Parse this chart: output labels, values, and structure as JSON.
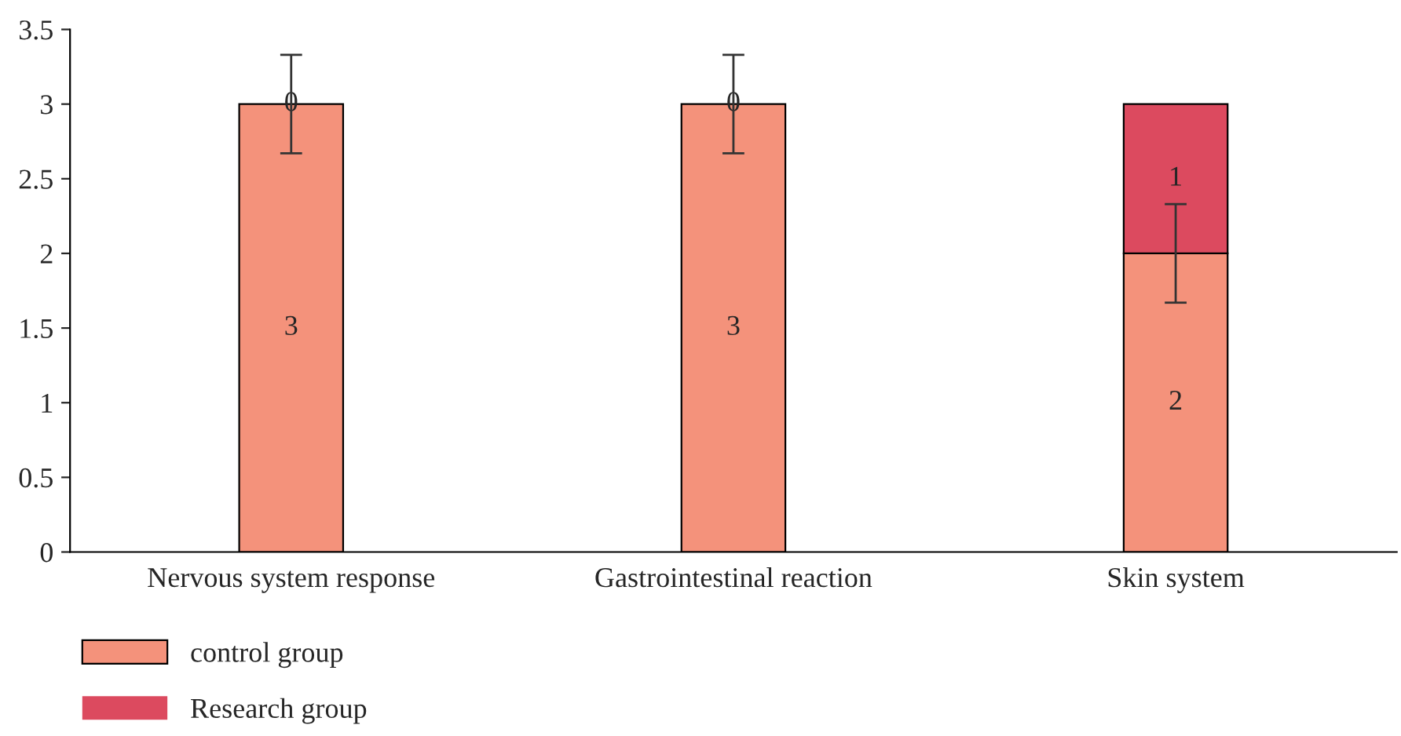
{
  "chart_data": {
    "type": "bar",
    "stacked": true,
    "categories": [
      "Nervous system response",
      "Gastrointestinal reaction",
      "Skin system"
    ],
    "series": [
      {
        "name": "control group",
        "color": "#f4927b",
        "values": [
          3,
          3,
          2
        ],
        "errors": [
          0.33,
          0.33,
          0.33
        ]
      },
      {
        "name": "Research group",
        "color": "#dc4a5f",
        "values": [
          0,
          0,
          1
        ]
      }
    ],
    "ylim": [
      0,
      3.5
    ],
    "yticks": [
      0,
      0.5,
      1,
      1.5,
      2,
      2.5,
      3,
      3.5
    ],
    "data_labels": true,
    "legend": "bottom left",
    "grid": false
  }
}
